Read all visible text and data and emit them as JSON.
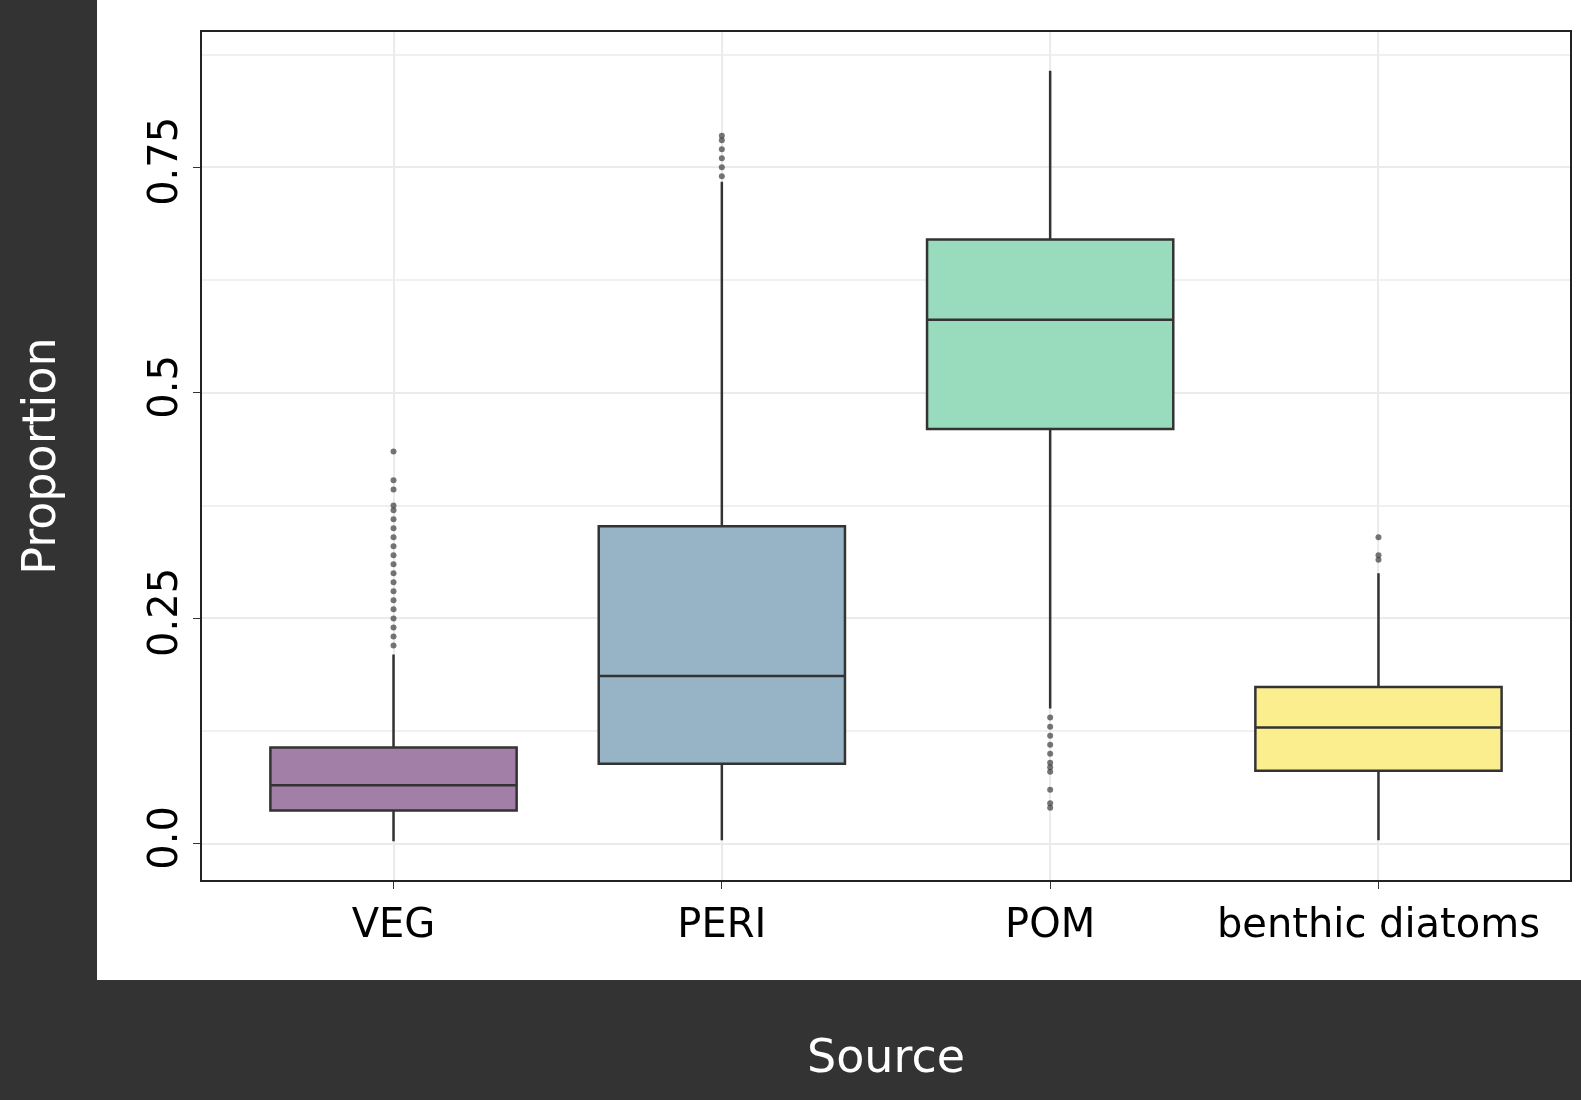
{
  "chart_data": {
    "type": "box",
    "xlabel": "Source",
    "ylabel": "Proportion",
    "categories": [
      "VEG",
      "PERI",
      "POM",
      "benthic diatoms"
    ],
    "colors": [
      "#a27fa6",
      "#97b4c6",
      "#99dbbd",
      "#fbee8f"
    ],
    "boxes": [
      {
        "low": 0.003,
        "q1": 0.037,
        "median": 0.065,
        "q3": 0.107,
        "high": 0.21,
        "outliers": [
          0.435,
          0.403,
          0.393,
          0.375,
          0.37,
          0.36,
          0.35,
          0.34,
          0.33,
          0.32,
          0.31,
          0.3,
          0.29,
          0.28,
          0.27,
          0.26,
          0.25,
          0.24,
          0.23,
          0.22
        ]
      },
      {
        "low": 0.004,
        "q1": 0.089,
        "median": 0.186,
        "q3": 0.352,
        "high": 0.734,
        "outliers": [
          0.74,
          0.75,
          0.76,
          0.77,
          0.78,
          0.785
        ]
      },
      {
        "low": 0.15,
        "q1": 0.46,
        "median": 0.581,
        "q3": 0.67,
        "high": 0.857,
        "outliers": [
          0.14,
          0.13,
          0.12,
          0.11,
          0.1,
          0.09,
          0.085,
          0.08,
          0.06,
          0.045,
          0.04
        ]
      },
      {
        "low": 0.004,
        "q1": 0.081,
        "median": 0.129,
        "q3": 0.174,
        "high": 0.3,
        "outliers": [
          0.34,
          0.32,
          0.315
        ]
      }
    ],
    "ylim": [
      -0.04,
      0.9
    ],
    "yticks": [
      {
        "value": 0,
        "label": "0.0"
      },
      {
        "value": 0.125,
        "label": null
      },
      {
        "value": 0.25,
        "label": "0.25"
      },
      {
        "value": 0.375,
        "label": null
      },
      {
        "value": 0.5,
        "label": "0.5"
      },
      {
        "value": 0.625,
        "label": null
      },
      {
        "value": 0.75,
        "label": "0.75"
      },
      {
        "value": 0.875,
        "label": null
      }
    ],
    "grid": true
  }
}
